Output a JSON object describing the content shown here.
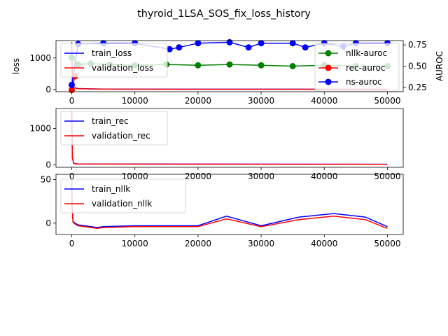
{
  "title": "thyroid_1LSA_SOS_fix_loss_history",
  "chart_data": [
    {
      "type": "line",
      "ylabel": "loss",
      "y2label": "AUROC",
      "xlim": [
        -2500,
        52500
      ],
      "ylim": [
        -70,
        1550
      ],
      "y2lim": [
        0.2,
        0.8
      ],
      "xticks": [
        0,
        10000,
        20000,
        30000,
        40000,
        50000
      ],
      "yticks": [
        0,
        1000
      ],
      "y2ticks": [
        0.25,
        0.5,
        0.75
      ],
      "legend_left": [
        "train_loss",
        "validation_loss"
      ],
      "legend_right": [
        "nllk-auroc",
        "rec-auroc",
        "ns-auroc"
      ],
      "series": [
        {
          "name": "train_loss",
          "color": "#0000ff",
          "x": [
            0,
            100,
            300,
            1000,
            5000,
            50000
          ],
          "y": [
            1500,
            300,
            60,
            30,
            12,
            8
          ]
        },
        {
          "name": "validation_loss",
          "color": "#ff0000",
          "x": [
            0,
            100,
            300,
            1000,
            5000,
            50000
          ],
          "y": [
            1480,
            290,
            55,
            25,
            10,
            6
          ]
        }
      ],
      "auroc_series": [
        {
          "name": "nllk-auroc",
          "color": "#008000",
          "x": [
            0,
            1000,
            3000,
            6000,
            10000,
            15000,
            20000,
            25000,
            30000,
            35000,
            40000,
            45000,
            50000
          ],
          "y": [
            0.6,
            0.52,
            0.53,
            0.52,
            0.51,
            0.52,
            0.51,
            0.52,
            0.51,
            0.5,
            0.51,
            0.5,
            0.5
          ]
        },
        {
          "name": "rec-auroc",
          "color": "#ff0000",
          "x": [
            0,
            500
          ],
          "y": [
            0.22,
            0.38
          ]
        },
        {
          "name": "ns-auroc",
          "color": "#0000ff",
          "x": [
            0,
            1000,
            5000,
            10000,
            15500,
            17000,
            20000,
            25000,
            28000,
            30000,
            35000,
            37000,
            40000,
            43000,
            45000,
            50000
          ],
          "y": [
            0.28,
            0.76,
            0.77,
            0.77,
            0.7,
            0.72,
            0.77,
            0.78,
            0.72,
            0.77,
            0.77,
            0.72,
            0.77,
            0.73,
            0.77,
            0.77
          ]
        }
      ]
    },
    {
      "type": "line",
      "xlim": [
        -2500,
        52500
      ],
      "ylim": [
        -70,
        1550
      ],
      "xticks": [
        0,
        10000,
        20000,
        30000,
        40000,
        50000
      ],
      "yticks": [
        0,
        1000
      ],
      "legend": [
        "train_rec",
        "validation_rec"
      ],
      "series": [
        {
          "name": "train_rec",
          "color": "#0000ff",
          "x": [
            0,
            100,
            300,
            1000,
            50000
          ],
          "y": [
            1480,
            200,
            40,
            20,
            15
          ]
        },
        {
          "name": "validation_rec",
          "color": "#ff0000",
          "x": [
            0,
            100,
            300,
            1000,
            50000
          ],
          "y": [
            1450,
            190,
            35,
            18,
            13
          ]
        }
      ]
    },
    {
      "type": "line",
      "xlim": [
        -2500,
        52500
      ],
      "ylim": [
        -13,
        56
      ],
      "xticks": [
        0,
        10000,
        20000,
        30000,
        40000,
        50000
      ],
      "yticks": [
        0,
        50
      ],
      "legend": [
        "train_nllk",
        "validation_nllk"
      ],
      "series": [
        {
          "name": "train_nllk",
          "color": "#0000ff",
          "x": [
            0,
            50,
            200,
            500,
            1000,
            2000,
            3000,
            4000,
            5000,
            10000,
            20000,
            24500,
            30000,
            36000,
            41500,
            46500,
            50000
          ],
          "y": [
            51,
            20,
            2,
            0,
            -2,
            -3,
            -4,
            -5,
            -4,
            -3,
            -3,
            8,
            -3,
            7,
            11,
            7,
            -4
          ]
        },
        {
          "name": "validation_nllk",
          "color": "#ff0000",
          "x": [
            0,
            50,
            200,
            500,
            1000,
            2000,
            3000,
            4000,
            5000,
            10000,
            20000,
            24500,
            30000,
            36000,
            41500,
            46500,
            50000
          ],
          "y": [
            48,
            18,
            1,
            -1,
            -3,
            -4,
            -5,
            -6,
            -5,
            -4,
            -4,
            5,
            -4,
            4,
            8,
            4,
            -6
          ]
        }
      ]
    }
  ]
}
